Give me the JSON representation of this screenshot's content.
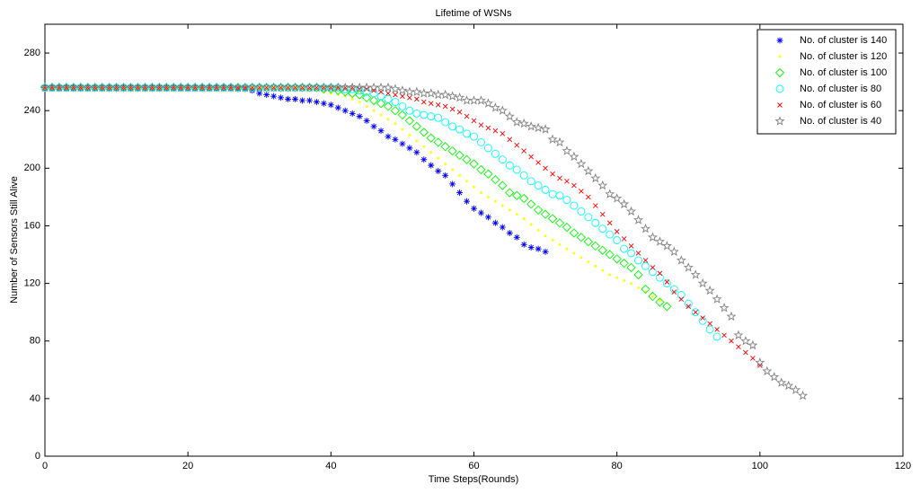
{
  "chart_data": {
    "type": "scatter",
    "title": "Lifetime of WSNs",
    "x_label": "Time Steps(Rounds)",
    "y_label": "Number  of Sensors Still Alive",
    "xlim": [
      0,
      120
    ],
    "ylim": [
      0,
      300
    ],
    "xticks": [
      0,
      20,
      40,
      60,
      80,
      100,
      120
    ],
    "yticks": [
      0,
      40,
      80,
      120,
      160,
      200,
      240,
      280
    ],
    "legend_position": "upper right",
    "x": [
      0,
      1,
      2,
      3,
      4,
      5,
      6,
      7,
      8,
      9,
      10,
      11,
      12,
      13,
      14,
      15,
      16,
      17,
      18,
      19,
      20,
      21,
      22,
      23,
      24,
      25,
      26,
      27,
      28,
      29,
      30,
      31,
      32,
      33,
      34,
      35,
      36,
      37,
      38,
      39,
      40,
      41,
      42,
      43,
      44,
      45,
      46,
      47,
      48,
      49,
      50,
      51,
      52,
      53,
      54,
      55,
      56,
      57,
      58,
      59,
      60,
      61,
      62,
      63,
      64,
      65,
      66,
      67,
      68,
      69,
      70,
      71,
      72,
      73,
      74,
      75,
      76,
      77,
      78,
      79,
      80,
      81,
      82,
      83,
      84,
      85,
      86,
      87,
      88,
      89,
      90,
      91,
      92,
      93,
      94,
      95,
      96,
      97,
      98,
      99,
      100,
      101,
      102,
      103,
      104,
      105,
      106
    ],
    "series": [
      {
        "name": "No. of cluster is 140",
        "color": "#0000ff",
        "marker": "asterisk",
        "values": [
          256,
          256,
          256,
          256,
          256,
          256,
          256,
          256,
          256,
          256,
          256,
          256,
          256,
          256,
          256,
          256,
          256,
          256,
          256,
          256,
          256,
          256,
          256,
          256,
          256,
          256,
          256,
          255,
          255,
          254,
          252,
          251,
          250,
          249,
          248,
          248,
          247,
          247,
          246,
          245,
          244,
          242,
          240,
          238,
          236,
          233,
          229,
          226,
          222,
          220,
          217,
          214,
          211,
          206,
          202,
          198,
          195,
          189,
          183,
          177,
          172,
          169,
          166,
          162,
          159,
          155,
          152,
          147,
          145,
          144,
          142,
          null,
          null,
          null,
          null,
          null,
          null,
          null,
          null,
          null,
          null,
          null,
          null,
          null,
          null,
          null,
          null,
          null,
          null,
          null,
          null,
          null,
          null,
          null,
          null,
          null,
          null,
          null,
          null,
          null,
          null,
          null,
          null,
          null,
          null,
          null,
          null
        ]
      },
      {
        "name": "No. of cluster is 120",
        "color": "#ffff00",
        "marker": "point",
        "values": [
          256,
          256,
          256,
          256,
          256,
          256,
          256,
          256,
          256,
          256,
          256,
          256,
          256,
          256,
          256,
          256,
          256,
          256,
          256,
          256,
          256,
          256,
          256,
          256,
          256,
          256,
          256,
          256,
          256,
          256,
          256,
          256,
          256,
          256,
          256,
          256,
          255,
          255,
          254,
          253,
          252,
          251,
          250,
          248,
          246,
          243,
          240,
          237,
          234,
          231,
          227,
          223,
          219,
          215,
          211,
          207,
          203,
          199,
          195,
          191,
          187,
          183,
          180,
          177,
          174,
          171,
          168,
          165,
          161,
          157,
          153,
          150,
          147,
          144,
          141,
          138,
          135,
          132,
          129,
          126,
          124,
          122,
          120,
          117,
          114,
          111,
          108,
          null,
          null,
          null,
          null,
          null,
          null,
          null,
          null,
          null,
          null,
          null,
          null,
          null,
          null,
          null,
          null,
          null,
          null,
          null,
          null
        ]
      },
      {
        "name": "No. of cluster is 100",
        "color": "#00ff00",
        "marker": "diamond",
        "values": [
          256,
          256,
          256,
          256,
          256,
          256,
          256,
          256,
          256,
          256,
          256,
          256,
          256,
          256,
          256,
          256,
          256,
          256,
          256,
          256,
          256,
          256,
          256,
          256,
          256,
          256,
          256,
          256,
          256,
          256,
          256,
          256,
          256,
          256,
          256,
          256,
          256,
          256,
          256,
          255,
          255,
          254,
          253,
          252,
          251,
          249,
          247,
          245,
          243,
          240,
          237,
          233,
          229,
          225,
          221,
          218,
          215,
          212,
          209,
          206,
          203,
          199,
          196,
          192,
          188,
          183,
          181,
          179,
          175,
          171,
          168,
          165,
          162,
          159,
          155,
          152,
          149,
          146,
          143,
          140,
          137,
          134,
          131,
          126,
          116,
          111,
          107,
          104,
          null,
          null,
          null,
          null,
          null,
          null,
          null,
          null,
          null,
          null,
          null,
          null,
          null,
          null,
          null,
          null,
          null,
          null,
          null
        ]
      },
      {
        "name": "No. of cluster is 80",
        "color": "#00ffff",
        "marker": "circle",
        "values": [
          256,
          256,
          256,
          256,
          256,
          256,
          256,
          256,
          256,
          256,
          256,
          256,
          256,
          256,
          256,
          256,
          256,
          256,
          256,
          256,
          256,
          256,
          256,
          256,
          256,
          256,
          256,
          256,
          256,
          256,
          256,
          256,
          256,
          256,
          256,
          256,
          256,
          256,
          256,
          256,
          256,
          256,
          255,
          255,
          254,
          253,
          252,
          250,
          248,
          246,
          243,
          240,
          238,
          237,
          236,
          235,
          232,
          229,
          227,
          224,
          222,
          218,
          214,
          210,
          206,
          202,
          199,
          195,
          191,
          188,
          185,
          182,
          181,
          178,
          174,
          170,
          166,
          162,
          158,
          154,
          150,
          144,
          141,
          136,
          132,
          128,
          124,
          120,
          116,
          112,
          106,
          100,
          94,
          88,
          83,
          null,
          null,
          null,
          null,
          null,
          null,
          null,
          null,
          null,
          null,
          null,
          null
        ]
      },
      {
        "name": "No. of cluster is 60",
        "color": "#ff0000",
        "marker": "cross",
        "values": [
          256,
          256,
          256,
          256,
          256,
          256,
          256,
          256,
          256,
          256,
          256,
          256,
          256,
          256,
          256,
          256,
          256,
          256,
          256,
          256,
          256,
          256,
          256,
          256,
          256,
          256,
          256,
          256,
          256,
          256,
          256,
          256,
          256,
          256,
          256,
          256,
          256,
          256,
          256,
          256,
          256,
          256,
          256,
          256,
          255,
          255,
          254,
          253,
          252,
          251,
          250,
          249,
          248,
          246,
          245,
          244,
          243,
          241,
          239,
          236,
          233,
          230,
          228,
          226,
          224,
          220,
          216,
          212,
          208,
          204,
          200,
          196,
          193,
          191,
          188,
          184,
          180,
          174,
          168,
          162,
          156,
          151,
          146,
          141,
          136,
          131,
          127,
          121,
          114,
          109,
          104,
          100,
          96,
          92,
          88,
          84,
          80,
          76,
          72,
          68,
          63,
          null,
          null,
          null,
          null,
          null,
          null
        ]
      },
      {
        "name": "No. of cluster is 40",
        "color": "#808080",
        "marker": "star",
        "values": [
          256,
          256,
          256,
          256,
          256,
          256,
          256,
          256,
          256,
          256,
          256,
          256,
          256,
          256,
          256,
          256,
          256,
          256,
          256,
          256,
          256,
          256,
          256,
          256,
          256,
          256,
          256,
          256,
          256,
          256,
          256,
          256,
          256,
          256,
          256,
          256,
          256,
          256,
          256,
          256,
          256,
          256,
          256,
          256,
          256,
          256,
          256,
          256,
          256,
          255,
          254,
          253,
          253,
          252,
          252,
          251,
          251,
          250,
          249,
          247,
          247,
          247,
          245,
          242,
          240,
          236,
          232,
          231,
          229,
          228,
          227,
          220,
          218,
          212,
          208,
          203,
          198,
          193,
          188,
          182,
          179,
          175,
          170,
          164,
          158,
          152,
          149,
          146,
          142,
          136,
          131,
          126,
          120,
          115,
          109,
          103,
          97,
          84,
          80,
          77,
          65,
          59,
          55,
          51,
          49,
          46,
          42
        ]
      }
    ]
  }
}
